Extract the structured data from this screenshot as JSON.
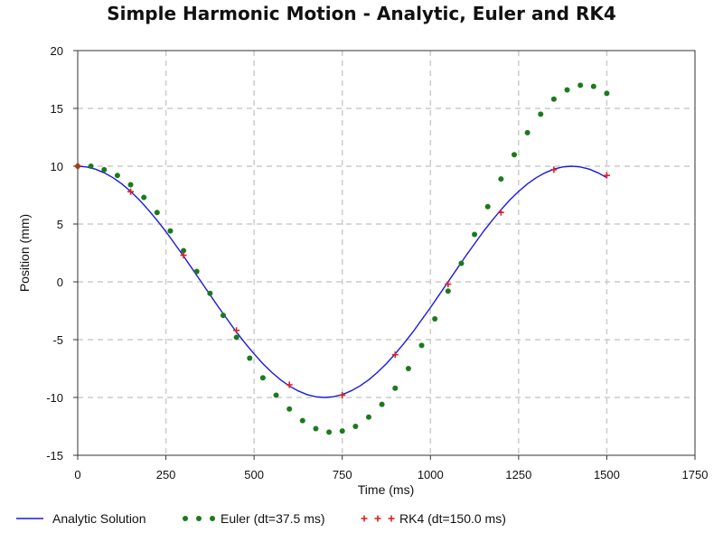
{
  "chart_data": {
    "type": "line",
    "title": "Simple Harmonic Motion - Analytic, Euler and RK4",
    "xlabel": "Time (ms)",
    "ylabel": "Position (mm)",
    "xlim": [
      0,
      1750
    ],
    "ylim": [
      -15,
      20
    ],
    "xticks": [
      0,
      250,
      500,
      750,
      1000,
      1250,
      1500,
      1750
    ],
    "yticks": [
      -15,
      -10,
      -5,
      0,
      5,
      10,
      15,
      20
    ],
    "grid": true,
    "legend_position": "bottom",
    "series": [
      {
        "name": "Analytic Solution",
        "style": "line",
        "color": "#1a1adb",
        "x": [
          0,
          25,
          50,
          75,
          100,
          125,
          150,
          175,
          200,
          225,
          250,
          275,
          300,
          325,
          350,
          375,
          400,
          425,
          450,
          475,
          500,
          525,
          550,
          575,
          600,
          625,
          650,
          675,
          700,
          725,
          750,
          775,
          800,
          825,
          850,
          875,
          900,
          925,
          950,
          975,
          1000,
          1025,
          1050,
          1075,
          1100,
          1125,
          1150,
          1175,
          1200,
          1225,
          1250,
          1275,
          1300,
          1325,
          1350,
          1375,
          1400,
          1425,
          1450,
          1475,
          1500
        ],
        "y": [
          10.0,
          9.94,
          9.75,
          9.43,
          9.01,
          8.47,
          7.82,
          7.08,
          6.23,
          5.32,
          4.34,
          3.29,
          2.23,
          1.12,
          0.0,
          -1.12,
          -2.23,
          -3.29,
          -4.34,
          -5.32,
          -6.23,
          -7.08,
          -7.82,
          -8.47,
          -9.01,
          -9.43,
          -9.75,
          -9.94,
          -10.0,
          -9.94,
          -9.75,
          -9.43,
          -9.01,
          -8.47,
          -7.82,
          -7.08,
          -6.23,
          -5.32,
          -4.34,
          -3.29,
          -2.23,
          -1.12,
          0.0,
          1.12,
          2.23,
          3.29,
          4.34,
          5.32,
          6.23,
          7.08,
          7.82,
          8.47,
          9.01,
          9.43,
          9.75,
          9.94,
          10.0,
          9.94,
          9.75,
          9.43,
          9.01
        ]
      },
      {
        "name": "Euler (dt=37.5 ms)",
        "style": "scatter-dot",
        "color": "#1b7a1b",
        "x": [
          0,
          37.5,
          75,
          112.5,
          150,
          187.5,
          225,
          262.5,
          300,
          337.5,
          375,
          412.5,
          450,
          487.5,
          525,
          562.5,
          600,
          637.5,
          675,
          712.5,
          750,
          787.5,
          825,
          862.5,
          900,
          937.5,
          975,
          1012.5,
          1050,
          1087.5,
          1125,
          1162.5,
          1200,
          1237.5,
          1275,
          1312.5,
          1350,
          1387.5,
          1425,
          1462.5,
          1500
        ],
        "y": [
          10.0,
          10.0,
          9.7,
          9.2,
          8.4,
          7.3,
          6.0,
          4.4,
          2.7,
          0.9,
          -1.0,
          -2.9,
          -4.8,
          -6.6,
          -8.3,
          -9.8,
          -11.0,
          -12.0,
          -12.7,
          -13.0,
          -12.9,
          -12.5,
          -11.7,
          -10.6,
          -9.2,
          -7.5,
          -5.5,
          -3.2,
          -0.8,
          1.6,
          4.1,
          6.5,
          8.9,
          11.0,
          12.9,
          14.5,
          15.8,
          16.6,
          17.0,
          16.9,
          16.3
        ]
      },
      {
        "name": "RK4 (dt=150.0 ms)",
        "style": "scatter-plus",
        "color": "#e02020",
        "x": [
          0,
          150,
          300,
          450,
          600,
          750,
          900,
          1050,
          1200,
          1350,
          1500
        ],
        "y": [
          10.0,
          7.8,
          2.3,
          -4.2,
          -8.9,
          -9.8,
          -6.3,
          -0.2,
          6.0,
          9.7,
          9.2
        ]
      }
    ]
  }
}
